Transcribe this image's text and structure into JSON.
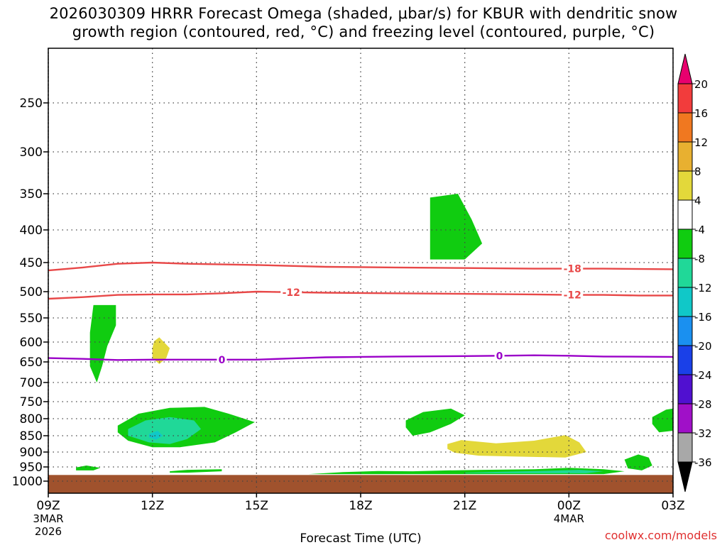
{
  "title": {
    "line1": "2026030309 HRRR Forecast Omega (shaded, μbar/s) for KBUR with dendritic snow",
    "line2": "growth region (contoured, red, °C) and freezing level (contoured, purple, °C)"
  },
  "credit": "coolwx.com/models",
  "chart_data": {
    "type": "contour",
    "title": "2026030309 HRRR Forecast Omega (shaded, μbar/s) for KBUR with dendritic snow growth region (contoured, red, °C) and freezing level (contoured, purple, °C)",
    "xlabel": "Forecast Time (UTC)",
    "ylabel": "",
    "x_range_hours": [
      0,
      18
    ],
    "y_range_hpa": [
      200,
      1040
    ],
    "y_scale": "log-pressure (inverted)",
    "grid": true,
    "x_ticks": [
      {
        "hour": 0,
        "label": "09Z",
        "sub1": "3MAR",
        "sub2": "2026"
      },
      {
        "hour": 3,
        "label": "12Z",
        "sub1": "",
        "sub2": ""
      },
      {
        "hour": 6,
        "label": "15Z",
        "sub1": "",
        "sub2": ""
      },
      {
        "hour": 9,
        "label": "18Z",
        "sub1": "",
        "sub2": ""
      },
      {
        "hour": 12,
        "label": "21Z",
        "sub1": "",
        "sub2": ""
      },
      {
        "hour": 15,
        "label": "00Z",
        "sub1": "4MAR",
        "sub2": ""
      },
      {
        "hour": 18,
        "label": "03Z",
        "sub1": "",
        "sub2": ""
      }
    ],
    "y_ticks": [
      {
        "p": 250,
        "label": "250"
      },
      {
        "p": 300,
        "label": "300"
      },
      {
        "p": 350,
        "label": "350"
      },
      {
        "p": 400,
        "label": "400"
      },
      {
        "p": 450,
        "label": "450"
      },
      {
        "p": 500,
        "label": "500"
      },
      {
        "p": 550,
        "label": "550"
      },
      {
        "p": 600,
        "label": "600"
      },
      {
        "p": 650,
        "label": "650"
      },
      {
        "p": 700,
        "label": "700"
      },
      {
        "p": 750,
        "label": "750"
      },
      {
        "p": 800,
        "label": "800"
      },
      {
        "p": 850,
        "label": "850"
      },
      {
        "p": 900,
        "label": "900"
      },
      {
        "p": 950,
        "label": "950"
      },
      {
        "p": 1000,
        "label": "1000"
      }
    ],
    "colorbar": {
      "labels": [
        "20",
        "16",
        "12",
        "8",
        "4",
        "-4",
        "-8",
        "-12",
        "-16",
        "-20",
        "-24",
        "-28",
        "-32",
        "-36"
      ],
      "colors": {
        "above_20": "#e8006e",
        "16_20": "#f23c3c",
        "12_16": "#f07820",
        "8_12": "#e8b030",
        "4_8": "#e3d83a",
        "-4_4": "#ffffff",
        "-8_-4": "#10cc10",
        "-12_-8": "#20d898",
        "-16_-12": "#10c8c8",
        "-20_-16": "#1a90f0",
        "-24_-20": "#1a40e8",
        "-28_-24": "#5010d0",
        "-32_-28": "#a010c8",
        "-36_-32": "#a8a8a8",
        "below_-36": "#000000"
      }
    },
    "shaded_regions": [
      {
        "band": "-8_-4",
        "poly": [
          [
            1.3,
            525
          ],
          [
            1.95,
            525
          ],
          [
            1.95,
            565
          ],
          [
            1.7,
            610
          ],
          [
            1.55,
            660
          ],
          [
            1.4,
            700
          ],
          [
            1.2,
            660
          ],
          [
            1.2,
            580
          ],
          [
            1.3,
            525
          ]
        ]
      },
      {
        "band": "4_8",
        "poly": [
          [
            3.05,
            598
          ],
          [
            3.2,
            590
          ],
          [
            3.5,
            615
          ],
          [
            3.4,
            640
          ],
          [
            3.2,
            655
          ],
          [
            3.0,
            640
          ],
          [
            3.0,
            615
          ],
          [
            3.05,
            598
          ]
        ]
      },
      {
        "band": "-8_-4",
        "poly": [
          [
            11.0,
            355
          ],
          [
            11.8,
            350
          ],
          [
            12.2,
            385
          ],
          [
            12.5,
            420
          ],
          [
            12.0,
            445
          ],
          [
            11.0,
            445
          ],
          [
            11.0,
            355
          ]
        ]
      },
      {
        "band": "-8_-4",
        "poly": [
          [
            2.0,
            820
          ],
          [
            2.6,
            785
          ],
          [
            3.5,
            768
          ],
          [
            4.5,
            765
          ],
          [
            5.2,
            785
          ],
          [
            5.95,
            810
          ],
          [
            5.4,
            840
          ],
          [
            4.8,
            870
          ],
          [
            3.8,
            885
          ],
          [
            3.0,
            885
          ],
          [
            2.3,
            865
          ],
          [
            2.0,
            840
          ],
          [
            2.0,
            820
          ]
        ]
      },
      {
        "band": "-12_-8",
        "poly": [
          [
            2.3,
            830
          ],
          [
            2.8,
            805
          ],
          [
            3.5,
            795
          ],
          [
            4.2,
            805
          ],
          [
            4.4,
            830
          ],
          [
            4.0,
            860
          ],
          [
            3.5,
            875
          ],
          [
            2.9,
            870
          ],
          [
            2.3,
            850
          ],
          [
            2.3,
            830
          ]
        ]
      },
      {
        "band": "-16_-12",
        "poly": [
          [
            2.9,
            845
          ],
          [
            3.15,
            835
          ],
          [
            3.3,
            850
          ],
          [
            3.1,
            862
          ],
          [
            2.9,
            855
          ],
          [
            2.9,
            845
          ]
        ]
      },
      {
        "band": "-8_-4",
        "poly": [
          [
            10.3,
            805
          ],
          [
            10.8,
            780
          ],
          [
            11.6,
            770
          ],
          [
            12.0,
            790
          ],
          [
            11.6,
            815
          ],
          [
            11.0,
            840
          ],
          [
            10.5,
            850
          ],
          [
            10.3,
            825
          ],
          [
            10.3,
            805
          ]
        ]
      },
      {
        "band": "4_8",
        "poly": [
          [
            11.5,
            875
          ],
          [
            11.9,
            863
          ],
          [
            12.9,
            873
          ],
          [
            14.0,
            865
          ],
          [
            14.9,
            848
          ],
          [
            15.3,
            870
          ],
          [
            15.5,
            900
          ],
          [
            14.9,
            918
          ],
          [
            13.5,
            915
          ],
          [
            12.4,
            912
          ],
          [
            11.7,
            902
          ],
          [
            11.5,
            890
          ],
          [
            11.5,
            875
          ]
        ]
      },
      {
        "band": "-8_-4",
        "poly": [
          [
            17.4,
            795
          ],
          [
            17.8,
            773
          ],
          [
            18.0,
            770
          ],
          [
            18.0,
            835
          ],
          [
            17.6,
            840
          ],
          [
            17.4,
            815
          ],
          [
            17.4,
            795
          ]
        ]
      },
      {
        "band": "-8_-4",
        "poly": [
          [
            16.6,
            925
          ],
          [
            17.0,
            908
          ],
          [
            17.3,
            918
          ],
          [
            17.4,
            945
          ],
          [
            17.1,
            962
          ],
          [
            16.7,
            955
          ],
          [
            16.6,
            925
          ]
        ]
      },
      {
        "band": "-8_-4",
        "poly": [
          [
            0.8,
            952
          ],
          [
            1.1,
            945
          ],
          [
            1.5,
            953
          ],
          [
            1.3,
            962
          ],
          [
            0.8,
            962
          ],
          [
            0.8,
            952
          ]
        ]
      },
      {
        "band": "-8_-4",
        "poly": [
          [
            3.5,
            965
          ],
          [
            4.0,
            960
          ],
          [
            5.0,
            958
          ],
          [
            5.0,
            965
          ],
          [
            4.0,
            970
          ],
          [
            3.5,
            970
          ],
          [
            3.5,
            965
          ]
        ]
      },
      {
        "band": "-8_-4",
        "poly": [
          [
            7.5,
            975
          ],
          [
            8.5,
            968
          ],
          [
            9.5,
            964
          ],
          [
            10.5,
            965
          ],
          [
            11.5,
            962
          ],
          [
            12.5,
            960
          ],
          [
            14.0,
            958
          ],
          [
            15.0,
            953
          ],
          [
            16.0,
            958
          ],
          [
            16.6,
            965
          ],
          [
            16.0,
            975
          ],
          [
            7.5,
            975
          ]
        ]
      },
      {
        "band": "-12_-8",
        "poly": [
          [
            12.0,
            970
          ],
          [
            13.0,
            967
          ],
          [
            14.5,
            963
          ],
          [
            15.3,
            960
          ],
          [
            16.0,
            965
          ],
          [
            15.5,
            972
          ],
          [
            12.0,
            972
          ],
          [
            12.0,
            970
          ]
        ]
      }
    ],
    "dgz_contours": [
      {
        "label": "-18",
        "color": "#e84848",
        "points": [
          [
            0,
            463
          ],
          [
            1,
            458
          ],
          [
            2,
            452
          ],
          [
            3,
            450
          ],
          [
            4,
            452
          ],
          [
            6,
            454
          ],
          [
            8,
            457
          ],
          [
            10,
            458
          ],
          [
            12,
            459
          ],
          [
            14,
            460
          ],
          [
            15,
            460
          ],
          [
            16,
            460
          ],
          [
            18,
            461
          ]
        ],
        "label_at": [
          [
            15.1,
            460
          ]
        ]
      },
      {
        "label": "-12",
        "color": "#e84848",
        "points": [
          [
            0,
            513
          ],
          [
            1,
            510
          ],
          [
            2,
            506
          ],
          [
            3,
            505
          ],
          [
            4,
            505
          ],
          [
            5,
            503
          ],
          [
            6,
            500
          ],
          [
            7,
            501
          ],
          [
            8,
            502
          ],
          [
            10,
            503
          ],
          [
            12,
            504
          ],
          [
            14,
            505
          ],
          [
            15,
            506
          ],
          [
            16,
            506
          ],
          [
            17,
            507
          ],
          [
            18,
            507
          ]
        ],
        "label_at": [
          [
            7.0,
            501
          ],
          [
            15.1,
            506
          ]
        ]
      }
    ],
    "freezing_contour": {
      "label": "0",
      "color": "#9a00c8",
      "points": [
        [
          0,
          640
        ],
        [
          1,
          642
        ],
        [
          2,
          645
        ],
        [
          3,
          644
        ],
        [
          4,
          644
        ],
        [
          5,
          644
        ],
        [
          6,
          644
        ],
        [
          7,
          641
        ],
        [
          8,
          638
        ],
        [
          10,
          636
        ],
        [
          12,
          635
        ],
        [
          13,
          634
        ],
        [
          14,
          633
        ],
        [
          15,
          634
        ],
        [
          16,
          636
        ],
        [
          18,
          637
        ]
      ],
      "label_at": [
        [
          5.0,
          644
        ],
        [
          13.0,
          634
        ]
      ]
    },
    "terrain": {
      "color": "#a0522d",
      "top_hpa": 978
    }
  }
}
